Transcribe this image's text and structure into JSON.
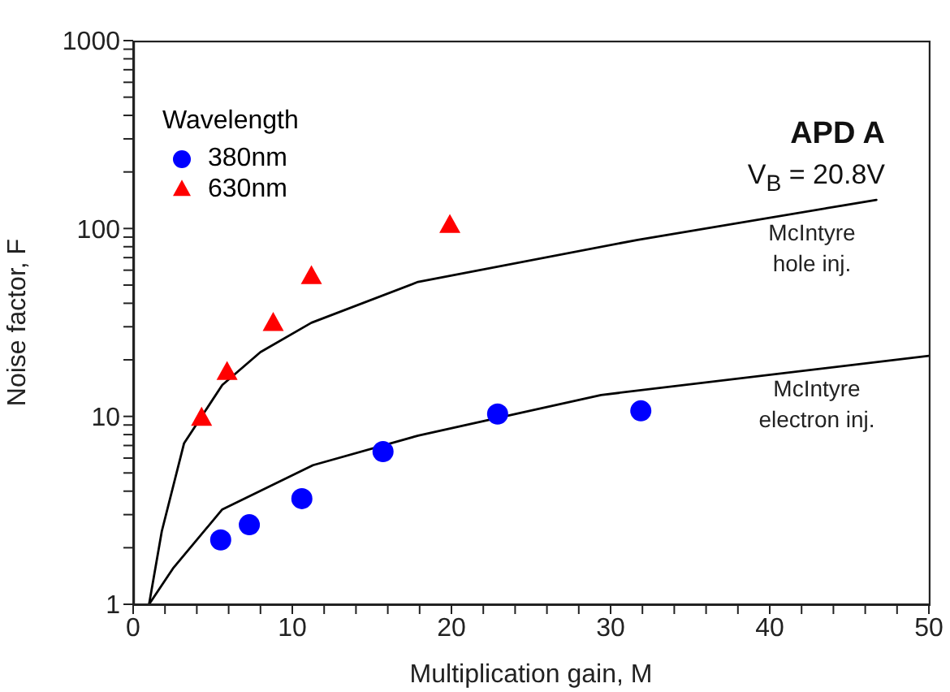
{
  "chart_data": {
    "type": "scatter",
    "title": "APD A",
    "subtitle": "V$_{B}$ = 20.8V",
    "xlabel": "Multiplication gain, M",
    "ylabel": "Noise factor, F",
    "legend_title": "Wavelength",
    "legend": "top left",
    "log": "y",
    "grid": false,
    "xlim": [
      0,
      50
    ],
    "xticks": [
      0,
      {
        "value": 2,
        "label": null
      },
      {
        "value": 4,
        "label": null
      },
      {
        "value": 6,
        "label": null
      },
      {
        "value": 8,
        "label": null
      },
      10,
      {
        "value": 12,
        "label": null
      },
      {
        "value": 14,
        "label": null
      },
      {
        "value": 16,
        "label": null
      },
      {
        "value": 18,
        "label": null
      },
      20,
      {
        "value": 22,
        "label": null
      },
      {
        "value": 24,
        "label": null
      },
      {
        "value": 26,
        "label": null
      },
      {
        "value": 28,
        "label": null
      },
      30,
      {
        "value": 32,
        "label": null
      },
      {
        "value": 34,
        "label": null
      },
      {
        "value": 36,
        "label": null
      },
      {
        "value": 38,
        "label": null
      },
      40,
      {
        "value": 42,
        "label": null
      },
      {
        "value": 44,
        "label": null
      },
      {
        "value": 46,
        "label": null
      },
      {
        "value": 48,
        "label": null
      },
      50
    ],
    "ylim": [
      1,
      1000
    ],
    "yticks": [
      1,
      {
        "value": 2,
        "label": null
      },
      {
        "value": 3,
        "label": null
      },
      {
        "value": 4,
        "label": null
      },
      {
        "value": 5,
        "label": null
      },
      {
        "value": 6,
        "label": null
      },
      {
        "value": 7,
        "label": null
      },
      {
        "value": 8,
        "label": null
      },
      {
        "value": 9,
        "label": null
      },
      10,
      {
        "value": 20,
        "label": null
      },
      {
        "value": 30,
        "label": null
      },
      {
        "value": 40,
        "label": null
      },
      {
        "value": 50,
        "label": null
      },
      {
        "value": 60,
        "label": null
      },
      {
        "value": 70,
        "label": null
      },
      {
        "value": 80,
        "label": null
      },
      {
        "value": 90,
        "label": null
      },
      100,
      {
        "value": 200,
        "label": null
      },
      {
        "value": 300,
        "label": null
      },
      {
        "value": 400,
        "label": null
      },
      {
        "value": 500,
        "label": null
      },
      {
        "value": 600,
        "label": null
      },
      {
        "value": 700,
        "label": null
      },
      {
        "value": 800,
        "label": null
      },
      {
        "value": 900,
        "label": null
      },
      1000
    ],
    "series": [
      {
        "name": "380nm",
        "marker": "circle",
        "color": "#0000ff",
        "x": [
          5.5,
          7.3,
          10.6,
          15.7,
          22.9,
          31.9
        ],
        "values": [
          2.2,
          2.65,
          3.65,
          6.5,
          10.3,
          10.7
        ]
      },
      {
        "name": "630nm",
        "marker": "triangle",
        "color": "#ff0000",
        "x": [
          4.3,
          5.9,
          8.8,
          11.2,
          19.9
        ],
        "values": [
          9.7,
          17,
          31,
          55,
          103
        ]
      },
      {
        "type": "line",
        "marker": "none",
        "line_style": "solid",
        "color": "#000000",
        "x": [
          1,
          1.8,
          3.2,
          5.6,
          8,
          11.2,
          17.9,
          31.7,
          46.7
        ],
        "values": [
          1,
          2.45,
          7.2,
          14.7,
          22,
          31.5,
          52,
          87,
          142
        ]
      },
      {
        "type": "line",
        "marker": "none",
        "line_style": "solid",
        "color": "#000000",
        "x": [
          1,
          2.5,
          5.6,
          11.3,
          17.9,
          29.4,
          50
        ],
        "values": [
          1,
          1.55,
          3.2,
          5.5,
          7.9,
          13,
          21
        ]
      }
    ],
    "annotations": [
      "McIntyre hole inj.",
      "McIntyre electron inj."
    ]
  }
}
